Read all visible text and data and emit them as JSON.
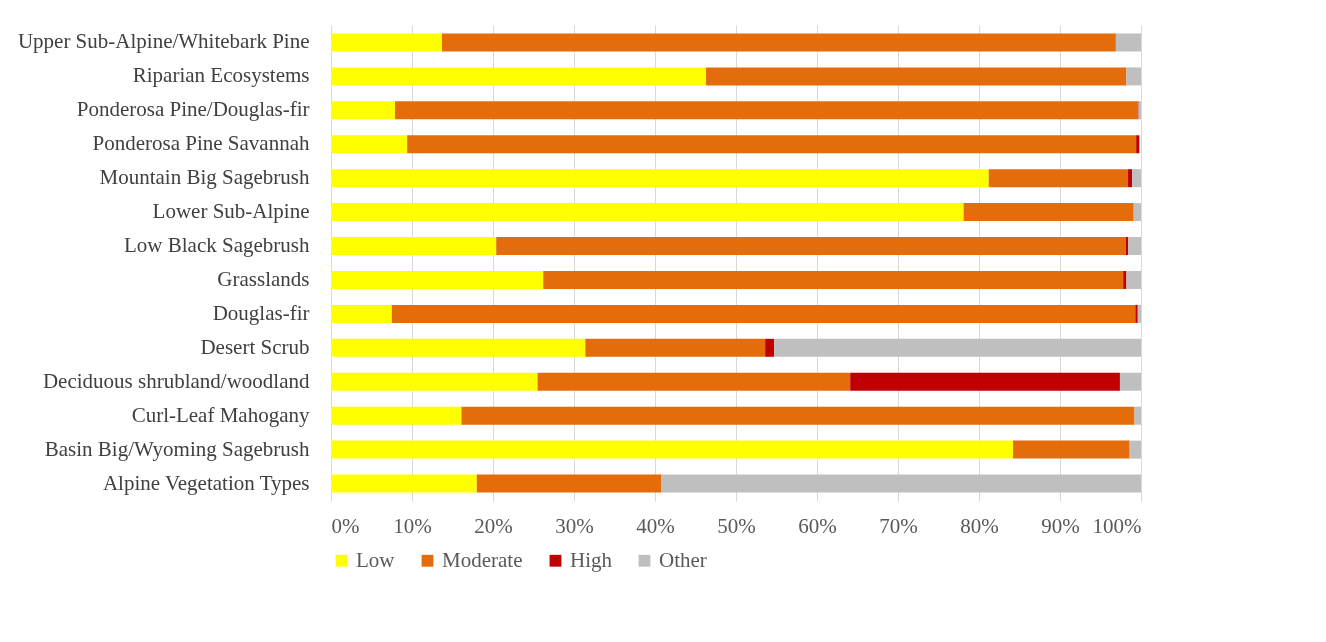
{
  "chart_data": {
    "type": "bar",
    "orientation": "horizontal",
    "stacked": true,
    "categories": [
      "Upper Sub-Alpine/Whitebark Pine",
      "Riparian Ecosystems",
      "Ponderosa Pine/Douglas-fir",
      "Ponderosa Pine Savannah",
      "Mountain Big Sagebrush",
      "Lower Sub-Alpine",
      "Low Black Sagebrush",
      "Grasslands",
      "Douglas-fir",
      "Desert Scrub",
      "Deciduous shrubland/woodland",
      "Curl-Leaf Mahogany",
      "Basin Big/Wyoming Sagebrush",
      "Alpine Vegetation Types"
    ],
    "series": [
      {
        "name": "Low",
        "color": "#ffff00",
        "values": [
          13.7,
          46.3,
          7.9,
          9.4,
          81.2,
          78.1,
          20.4,
          26.2,
          7.5,
          31.4,
          25.5,
          16.1,
          84.2,
          18.0
        ]
      },
      {
        "name": "Moderate",
        "color": "#e46c0a",
        "values": [
          83.2,
          51.9,
          91.7,
          90.0,
          17.2,
          21.0,
          77.7,
          71.6,
          91.8,
          22.2,
          38.6,
          83.1,
          14.4,
          22.8
        ]
      },
      {
        "name": "High",
        "color": "#c00000",
        "values": [
          0,
          0,
          0.1,
          0.4,
          0.5,
          0,
          0.3,
          0.4,
          0.3,
          1.1,
          33.3,
          0,
          0,
          0
        ]
      },
      {
        "name": "Other",
        "color": "#bfbfbf",
        "values": [
          3.1,
          1.8,
          0.3,
          null,
          1.1,
          0.9,
          1.6,
          1.8,
          0.4,
          45.3,
          2.6,
          0.8,
          1.4,
          59.2
        ]
      }
    ],
    "xlim": [
      0,
      100
    ],
    "xticks": [
      {
        "value": 0,
        "label": "0%"
      },
      {
        "value": 10,
        "label": "10%"
      },
      {
        "value": 20,
        "label": "20%"
      },
      {
        "value": 30,
        "label": "30%"
      },
      {
        "value": 40,
        "label": "40%"
      },
      {
        "value": 50,
        "label": "50%"
      },
      {
        "value": 60,
        "label": "60%"
      },
      {
        "value": 70,
        "label": "70%"
      },
      {
        "value": 80,
        "label": "80%"
      },
      {
        "value": 90,
        "label": "90%"
      },
      {
        "value": 100,
        "label": "100%"
      }
    ],
    "grid": "x",
    "legend": "bottom"
  }
}
